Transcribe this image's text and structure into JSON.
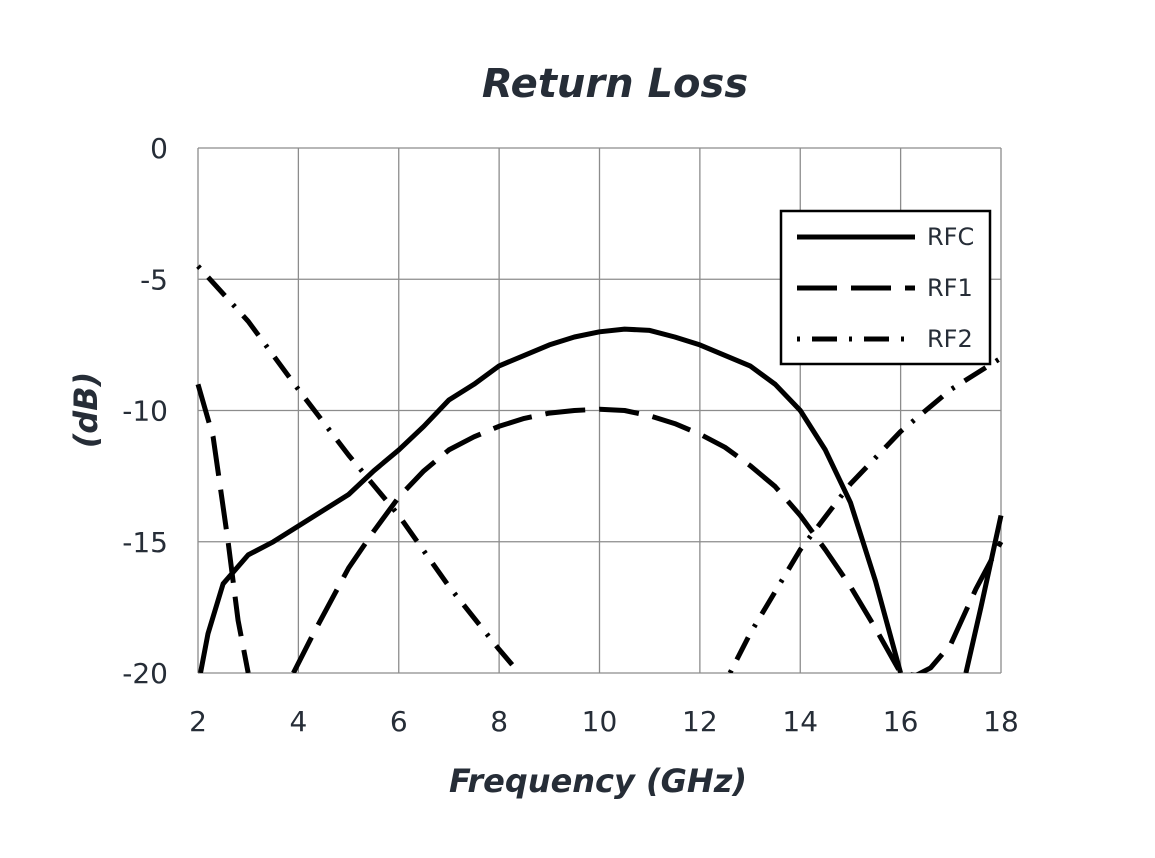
{
  "chart_data": {
    "type": "line",
    "title": "Return Loss",
    "xlabel": "Frequency (GHz)",
    "ylabel": "(dB)",
    "xlim": [
      2,
      18
    ],
    "ylim": [
      -20,
      0
    ],
    "xticks": [
      "2",
      "4",
      "6",
      "8",
      "10",
      "12",
      "14",
      "16",
      "18"
    ],
    "yticks": [
      "0",
      "-5",
      "-10",
      "-15",
      "-20"
    ],
    "grid": true,
    "legend_position": "top-right",
    "series": [
      {
        "name": "RFC",
        "line_style": "solid",
        "color": "#000000",
        "points": [
          [
            2.05,
            -20
          ],
          [
            2.2,
            -18.5
          ],
          [
            2.5,
            -16.6
          ],
          [
            3,
            -15.5
          ],
          [
            3.5,
            -15
          ],
          [
            4,
            -14.4
          ],
          [
            4.5,
            -13.8
          ],
          [
            5,
            -13.2
          ],
          [
            5.5,
            -12.3
          ],
          [
            6,
            -11.5
          ],
          [
            6.5,
            -10.6
          ],
          [
            7,
            -9.6
          ],
          [
            7.5,
            -9
          ],
          [
            8,
            -8.3
          ],
          [
            8.5,
            -7.9
          ],
          [
            9,
            -7.5
          ],
          [
            9.5,
            -7.2
          ],
          [
            10,
            -7
          ],
          [
            10.5,
            -6.9
          ],
          [
            11,
            -6.95
          ],
          [
            11.5,
            -7.2
          ],
          [
            12,
            -7.5
          ],
          [
            12.5,
            -7.9
          ],
          [
            13,
            -8.3
          ],
          [
            13.5,
            -9
          ],
          [
            14,
            -10
          ],
          [
            14.5,
            -11.5
          ],
          [
            15,
            -13.5
          ],
          [
            15.5,
            -16.5
          ],
          [
            16,
            -20
          ]
        ]
      },
      {
        "name": "RFC",
        "line_style": "solid",
        "color": "#000000",
        "points": [
          [
            17.3,
            -20
          ],
          [
            17.6,
            -17.5
          ],
          [
            18,
            -14
          ]
        ]
      },
      {
        "name": "RF1",
        "line_style": "dashed",
        "color": "#000000",
        "points": [
          [
            2,
            -9
          ],
          [
            2.3,
            -11
          ],
          [
            2.6,
            -15
          ],
          [
            2.8,
            -18
          ],
          [
            3,
            -20
          ]
        ]
      },
      {
        "name": "RF1",
        "line_style": "dashed",
        "color": "#000000",
        "points": [
          [
            3.9,
            -20
          ],
          [
            4.3,
            -18.5
          ],
          [
            5,
            -16
          ],
          [
            5.5,
            -14.6
          ],
          [
            6,
            -13.3
          ],
          [
            6.5,
            -12.3
          ],
          [
            7,
            -11.5
          ],
          [
            7.5,
            -11
          ],
          [
            8,
            -10.6
          ],
          [
            8.5,
            -10.3
          ],
          [
            9,
            -10.1
          ],
          [
            9.5,
            -10
          ],
          [
            10,
            -9.95
          ],
          [
            10.5,
            -10
          ],
          [
            11,
            -10.2
          ],
          [
            11.5,
            -10.5
          ],
          [
            12,
            -10.9
          ],
          [
            12.5,
            -11.4
          ],
          [
            13,
            -12.1
          ],
          [
            13.5,
            -12.9
          ],
          [
            14,
            -14
          ],
          [
            14.5,
            -15.3
          ],
          [
            15,
            -16.7
          ],
          [
            15.5,
            -18.3
          ],
          [
            16,
            -20
          ],
          [
            16.3,
            -20.1
          ],
          [
            16.6,
            -19.8
          ],
          [
            17,
            -18.9
          ],
          [
            17.5,
            -16.8
          ],
          [
            18,
            -15
          ]
        ]
      },
      {
        "name": "RF2",
        "line_style": "dash-dot",
        "color": "#000000",
        "points": [
          [
            2,
            -4.5
          ],
          [
            3,
            -6.6
          ],
          [
            4,
            -9.2
          ],
          [
            5,
            -11.7
          ],
          [
            6,
            -14
          ],
          [
            7,
            -16.7
          ],
          [
            8,
            -19.1
          ],
          [
            8.4,
            -20
          ]
        ]
      },
      {
        "name": "RF2",
        "line_style": "dash-dot",
        "color": "#000000",
        "points": [
          [
            12.6,
            -20
          ],
          [
            13,
            -18.5
          ],
          [
            14,
            -15.3
          ],
          [
            15,
            -12.8
          ],
          [
            16,
            -10.8
          ],
          [
            17,
            -9.2
          ],
          [
            18,
            -8
          ]
        ]
      }
    ],
    "legend": [
      {
        "label": "RFC",
        "line_style": "solid"
      },
      {
        "label": "RF1",
        "line_style": "dashed"
      },
      {
        "label": "RF2",
        "line_style": "dash-dot"
      }
    ]
  }
}
